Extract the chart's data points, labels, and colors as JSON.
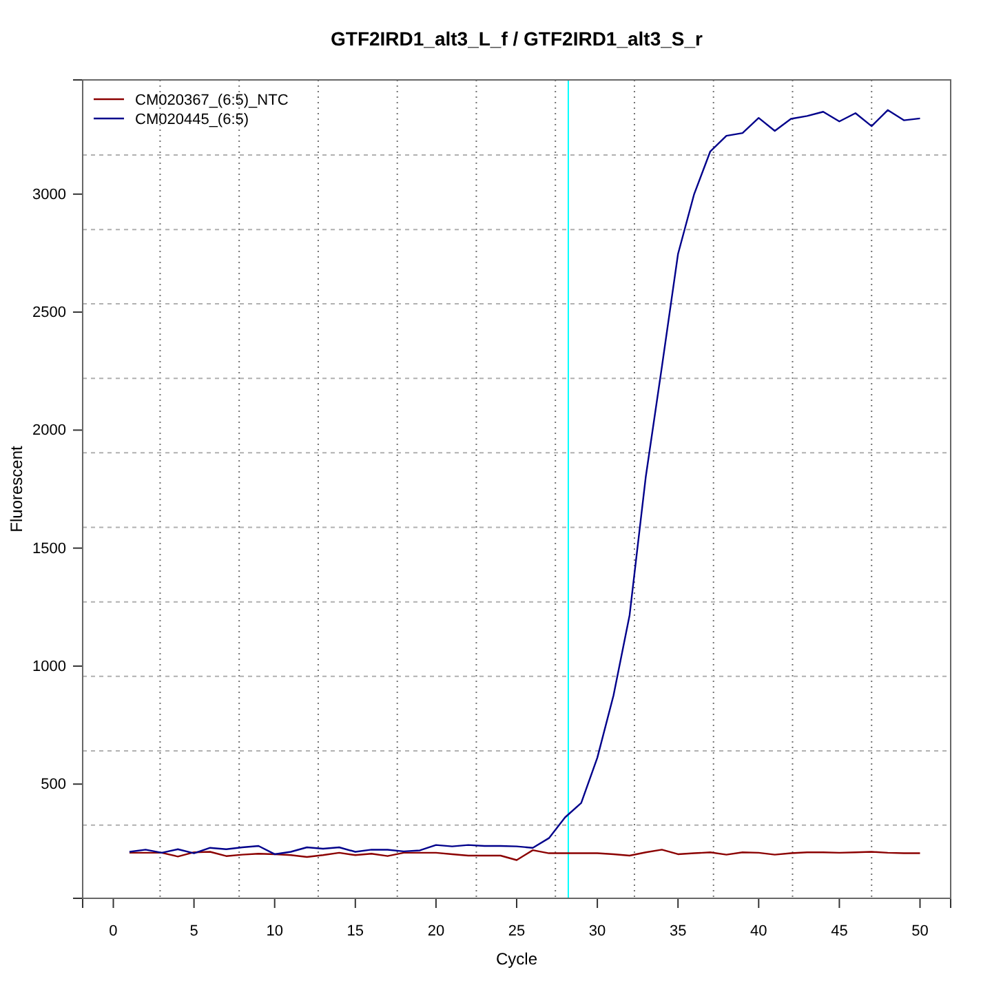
{
  "chart_data": {
    "type": "line",
    "title": "GTF2IRD1_alt3_L_f / GTF2IRD1_alt3_S_r",
    "xlabel": "Cycle",
    "ylabel": "Fluorescent",
    "x": [
      1,
      2,
      3,
      4,
      5,
      6,
      7,
      8,
      9,
      10,
      11,
      12,
      13,
      14,
      15,
      16,
      17,
      18,
      19,
      20,
      21,
      22,
      23,
      24,
      25,
      26,
      27,
      28,
      29,
      30,
      31,
      32,
      33,
      34,
      35,
      36,
      37,
      38,
      39,
      40,
      41,
      42,
      43,
      44,
      45,
      46,
      47,
      48,
      49,
      50
    ],
    "series": [
      {
        "name": "CM020367_(6:5)_NTC",
        "color": "#8b0000",
        "values": [
          209,
          209,
          209,
          193,
          211,
          213,
          195,
          201,
          205,
          203,
          199,
          191,
          199,
          209,
          199,
          205,
          195,
          209,
          209,
          209,
          203,
          197,
          197,
          197,
          178,
          220,
          207,
          207,
          207,
          207,
          203,
          197,
          211,
          222,
          203,
          207,
          211,
          201,
          211,
          209,
          201,
          207,
          211,
          211,
          209,
          211,
          213,
          209,
          207,
          207
        ]
      },
      {
        "name": "CM020445_(6:5)",
        "color": "#00008b",
        "values": [
          213,
          222,
          209,
          224,
          207,
          230,
          224,
          232,
          238,
          203,
          213,
          232,
          226,
          232,
          213,
          222,
          222,
          215,
          219,
          242,
          236,
          242,
          238,
          238,
          236,
          230,
          271,
          359,
          420,
          612,
          875,
          1216,
          1801,
          2268,
          2746,
          3000,
          3181,
          3247,
          3259,
          3323,
          3268,
          3319,
          3331,
          3349,
          3308,
          3343,
          3288,
          3356,
          3313,
          3321
        ]
      }
    ],
    "xlim": [
      -1.9,
      51.9
    ],
    "xticks": [
      0,
      5,
      10,
      15,
      20,
      25,
      30,
      35,
      40,
      45,
      50
    ],
    "ylim": [
      16,
      3484
    ],
    "yticks": [
      500,
      1000,
      1500,
      2000,
      2500,
      3000
    ],
    "legend": "top left",
    "line_style": "solid",
    "ref_lines": [
      {
        "axis": "x",
        "value": 2.9,
        "label": null,
        "color": "#707070",
        "line_style": "dotted"
      },
      {
        "axis": "x",
        "value": 7.8,
        "label": null,
        "color": "#707070",
        "line_style": "dotted"
      },
      {
        "axis": "x",
        "value": 12.7,
        "label": null,
        "color": "#707070",
        "line_style": "dotted"
      },
      {
        "axis": "x",
        "value": 17.6,
        "label": null,
        "color": "#707070",
        "line_style": "dotted"
      },
      {
        "axis": "x",
        "value": 22.5,
        "label": null,
        "color": "#707070",
        "line_style": "dotted"
      },
      {
        "axis": "x",
        "value": 27.4,
        "label": null,
        "color": "#707070",
        "line_style": "dotted"
      },
      {
        "axis": "x",
        "value": 32.3,
        "label": null,
        "color": "#707070",
        "line_style": "dotted"
      },
      {
        "axis": "x",
        "value": 37.2,
        "label": null,
        "color": "#707070",
        "line_style": "dotted"
      },
      {
        "axis": "x",
        "value": 42.1,
        "label": null,
        "color": "#707070",
        "line_style": "dotted"
      },
      {
        "axis": "x",
        "value": 47.0,
        "label": null,
        "color": "#707070",
        "line_style": "dotted"
      },
      {
        "axis": "y",
        "value": 326,
        "label": null,
        "color": "#b0b0b0",
        "line_style": "dashed"
      },
      {
        "axis": "y",
        "value": 641,
        "label": null,
        "color": "#b0b0b0",
        "line_style": "dashed"
      },
      {
        "axis": "y",
        "value": 957,
        "label": null,
        "color": "#b0b0b0",
        "line_style": "dashed"
      },
      {
        "axis": "y",
        "value": 1272,
        "label": null,
        "color": "#b0b0b0",
        "line_style": "dashed"
      },
      {
        "axis": "y",
        "value": 1588,
        "label": null,
        "color": "#b0b0b0",
        "line_style": "dashed"
      },
      {
        "axis": "y",
        "value": 1904,
        "label": null,
        "color": "#b0b0b0",
        "line_style": "dashed"
      },
      {
        "axis": "y",
        "value": 2219,
        "label": null,
        "color": "#b0b0b0",
        "line_style": "dashed"
      },
      {
        "axis": "y",
        "value": 2535,
        "label": null,
        "color": "#b0b0b0",
        "line_style": "dashed"
      },
      {
        "axis": "y",
        "value": 2850,
        "label": null,
        "color": "#b0b0b0",
        "line_style": "dashed"
      },
      {
        "axis": "y",
        "value": 3166,
        "label": null,
        "color": "#b0b0b0",
        "line_style": "dashed"
      },
      {
        "axis": "x",
        "value": 28.2,
        "label": null,
        "color": "#00ffff",
        "line_style": "solid"
      }
    ]
  }
}
